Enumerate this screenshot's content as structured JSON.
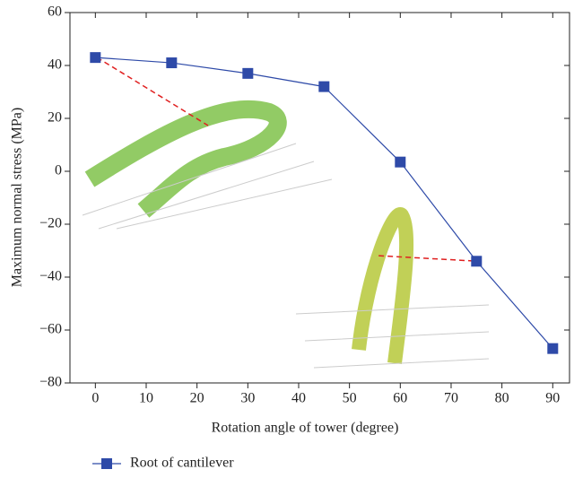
{
  "chart_data": {
    "type": "line",
    "x_label": "Rotation angle of tower (degree)",
    "y_label": "Maximum normal stress (MPa)",
    "x": [
      0,
      15,
      30,
      45,
      60,
      75,
      90
    ],
    "series": [
      {
        "name": "Root of cantilever",
        "color": "#2e4aa8",
        "values": [
          43,
          41,
          37,
          32,
          3.5,
          -34,
          -67
        ]
      }
    ],
    "xlim": [
      -5,
      93.3
    ],
    "ylim": [
      -80,
      60
    ],
    "xticks": [
      0,
      10,
      20,
      30,
      40,
      50,
      60,
      70,
      80,
      90
    ],
    "yticks": [
      {
        "value": -80,
        "label": "−80"
      },
      {
        "value": -60,
        "label": "−60"
      },
      {
        "value": -40,
        "label": "−40"
      },
      {
        "value": -20,
        "label": "−20"
      },
      0,
      20,
      40,
      60
    ]
  }
}
